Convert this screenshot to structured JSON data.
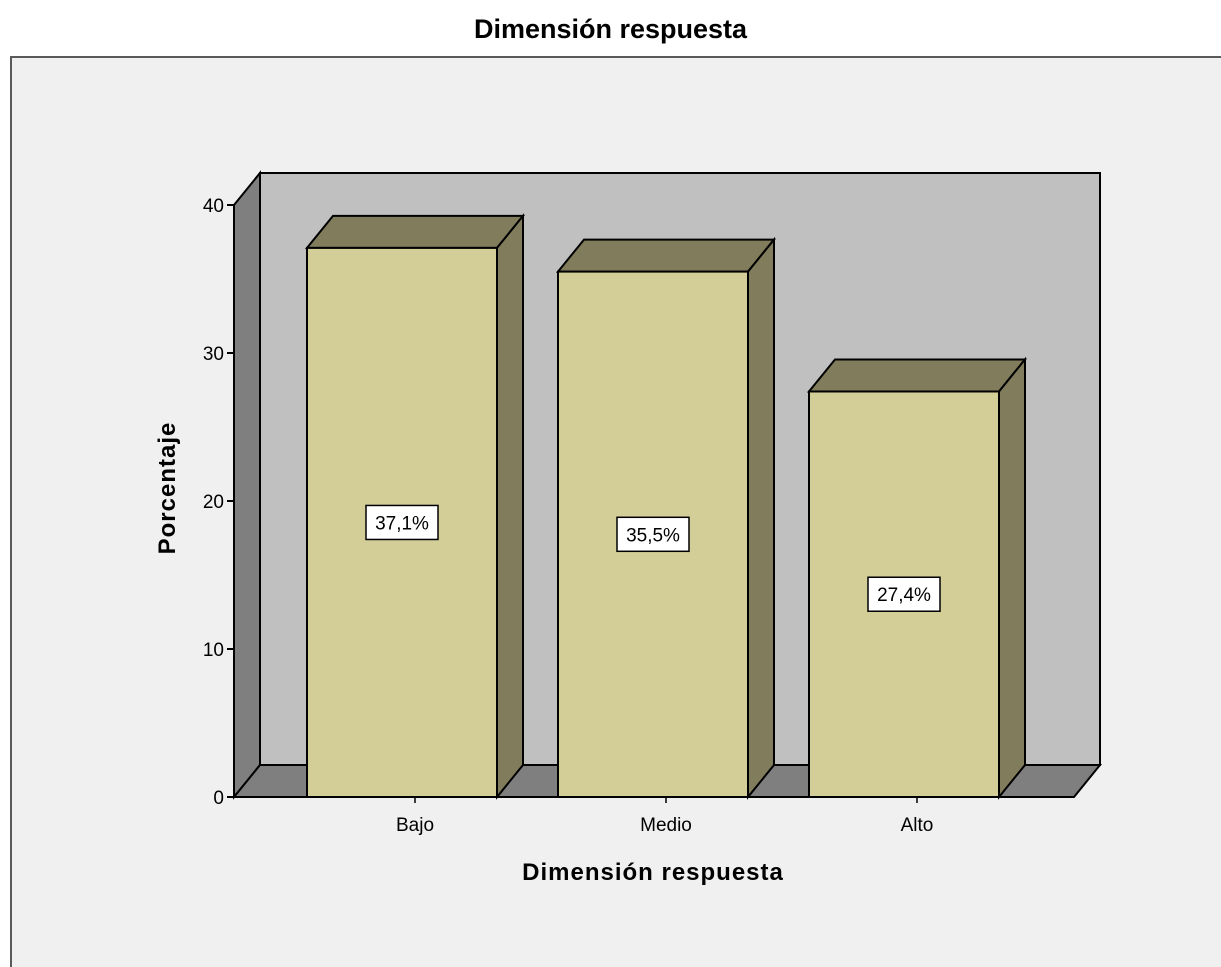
{
  "chart_data": {
    "type": "bar",
    "title": "Dimensión respuesta",
    "xlabel": "Dimensión respuesta",
    "ylabel": "Porcentaje",
    "categories": [
      "Bajo",
      "Medio",
      "Alto"
    ],
    "values": [
      37.1,
      35.5,
      27.4
    ],
    "data_labels": [
      "37,1%",
      "35,5%",
      "27,4%"
    ],
    "yticks": [
      0,
      10,
      20,
      30,
      40
    ],
    "ylim": [
      0,
      40
    ],
    "grid": false,
    "legend": "none",
    "style": "3d"
  },
  "colors": {
    "bar_front": "#d3cd98",
    "bar_top": "#817c5b",
    "bar_side": "#817c5b",
    "back_wall": "#c0c0c0",
    "left_wall": "#7f7f7f",
    "floor": "#7f7f7f",
    "outer_background": "#f0f0f0",
    "label_box": "#ffffff"
  }
}
